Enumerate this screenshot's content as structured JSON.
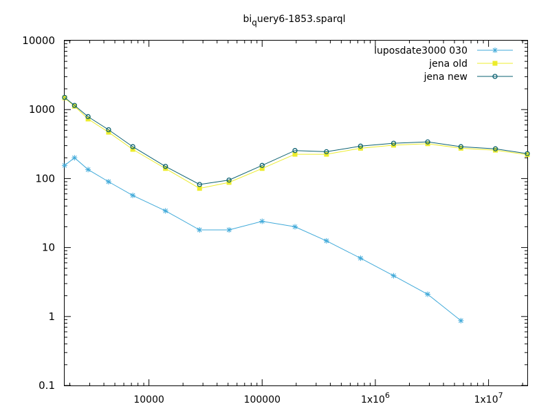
{
  "chart_data": {
    "type": "line",
    "title_parts": {
      "pre": "bi",
      "sub": "q",
      "post": "uery6-1853.sparql"
    },
    "x_scale": "log",
    "y_scale": "log",
    "xlim": [
      1800,
      22000000
    ],
    "ylim": [
      0.1,
      10000
    ],
    "x_tick_labels": [
      {
        "value": 10000,
        "label": "10000"
      },
      {
        "value": 100000,
        "label": "100000"
      },
      {
        "value": 1000000,
        "label_base": "1x10",
        "label_exp": "6"
      },
      {
        "value": 10000000,
        "label_base": "1x10",
        "label_exp": "7"
      }
    ],
    "y_tick_labels": [
      {
        "value": 10000,
        "label": "10000"
      },
      {
        "value": 1000,
        "label": "1000"
      },
      {
        "value": 100,
        "label": "100"
      },
      {
        "value": 10,
        "label": "10"
      },
      {
        "value": 1,
        "label": "1"
      },
      {
        "value": 0.1,
        "label": "0.1"
      }
    ],
    "grid": false,
    "legend_position": "top-right",
    "series": [
      {
        "name": "luposdate3000 030",
        "color": "#3fa9d9",
        "marker": "star",
        "points": [
          [
            1800,
            155
          ],
          [
            2200,
            200
          ],
          [
            2900,
            135
          ],
          [
            4400,
            90
          ],
          [
            7200,
            57
          ],
          [
            14000,
            34
          ],
          [
            28000,
            18
          ],
          [
            51000,
            18
          ],
          [
            100000,
            24
          ],
          [
            195000,
            20
          ],
          [
            370000,
            12.5
          ],
          [
            740000,
            7
          ],
          [
            1450000,
            3.9
          ],
          [
            2900000,
            2.1
          ],
          [
            5700000,
            0.87
          ]
        ]
      },
      {
        "name": "jena old",
        "color": "#ecec2c",
        "marker": "square",
        "points": [
          [
            1800,
            1480
          ],
          [
            2200,
            1120
          ],
          [
            2900,
            730
          ],
          [
            4400,
            470
          ],
          [
            7200,
            265
          ],
          [
            14000,
            140
          ],
          [
            28000,
            72
          ],
          [
            51000,
            88
          ],
          [
            100000,
            140
          ],
          [
            195000,
            225
          ],
          [
            370000,
            225
          ],
          [
            740000,
            275
          ],
          [
            1450000,
            305
          ],
          [
            2900000,
            320
          ],
          [
            5700000,
            275
          ],
          [
            11500000,
            258
          ],
          [
            22000000,
            222
          ]
        ]
      },
      {
        "name": "jena new",
        "color": "#0a6070",
        "marker": "circle",
        "points": [
          [
            1800,
            1500
          ],
          [
            2200,
            1150
          ],
          [
            2900,
            790
          ],
          [
            4400,
            510
          ],
          [
            7200,
            290
          ],
          [
            14000,
            150
          ],
          [
            28000,
            82
          ],
          [
            51000,
            95
          ],
          [
            100000,
            155
          ],
          [
            195000,
            255
          ],
          [
            370000,
            245
          ],
          [
            740000,
            295
          ],
          [
            1450000,
            325
          ],
          [
            2900000,
            340
          ],
          [
            5700000,
            290
          ],
          [
            11500000,
            270
          ],
          [
            22000000,
            230
          ]
        ]
      }
    ]
  }
}
